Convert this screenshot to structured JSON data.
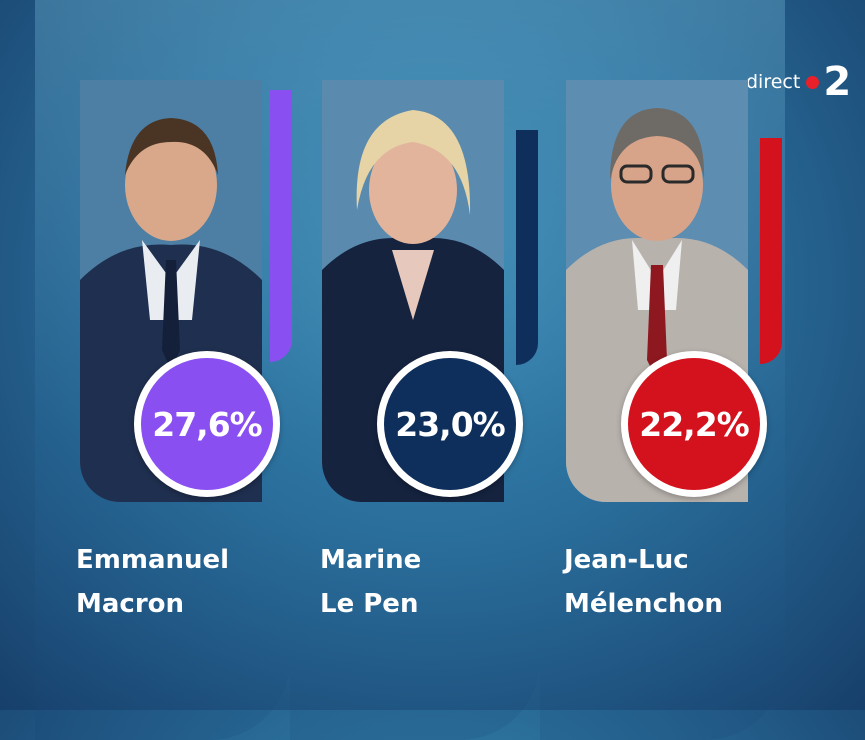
{
  "channel": {
    "live_label": "direct",
    "channel_number": "2",
    "dot_color": "#e8202a"
  },
  "candidates": [
    {
      "first_name": "Emmanuel",
      "last_name": "Macron",
      "percent": "27,6%",
      "color": "#8a4ff0",
      "share_value": 27.6
    },
    {
      "first_name": "Marine",
      "last_name": "Le Pen",
      "percent": "23,0%",
      "color": "#0e2e5c",
      "share_value": 23.0
    },
    {
      "first_name": "Jean-Luc",
      "last_name": "Mélenchon",
      "percent": "22,2%",
      "color": "#d3121e",
      "share_value": 22.2
    }
  ]
}
